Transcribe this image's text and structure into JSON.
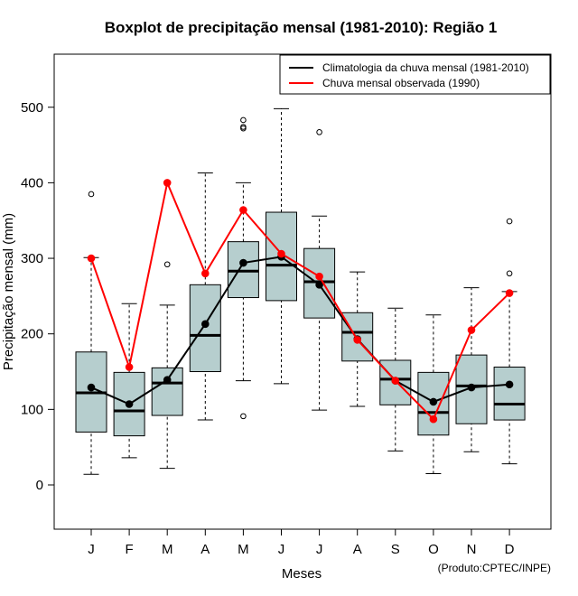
{
  "chart_data": {
    "type": "boxplot",
    "title": "Boxplot de precipitação mensal (1981-2010): Região 1",
    "xlabel": "Meses",
    "ylabel": "Precipitação mensal (mm)",
    "ylim": [
      -60,
      560
    ],
    "yticks": [
      0,
      100,
      200,
      300,
      400,
      500
    ],
    "categories": [
      "J",
      "F",
      "M",
      "A",
      "M",
      "J",
      "J",
      "A",
      "S",
      "O",
      "N",
      "D"
    ],
    "boxes": [
      {
        "min": 14,
        "q1": 70,
        "median": 122,
        "q3": 176,
        "max": 301,
        "outliers": [
          385
        ]
      },
      {
        "min": 36,
        "q1": 65,
        "median": 98,
        "q3": 149,
        "max": 240,
        "outliers": []
      },
      {
        "min": 22,
        "q1": 92,
        "median": 135,
        "q3": 155,
        "max": 238,
        "outliers": [
          292
        ]
      },
      {
        "min": 86,
        "q1": 150,
        "median": 198,
        "q3": 265,
        "max": 413,
        "outliers": []
      },
      {
        "min": 138,
        "q1": 248,
        "median": 283,
        "q3": 322,
        "max": 400,
        "outliers": [
          91,
          472,
          474,
          483
        ]
      },
      {
        "min": 134,
        "q1": 244,
        "median": 291,
        "q3": 361,
        "max": 498,
        "outliers": []
      },
      {
        "min": 99,
        "q1": 221,
        "median": 269,
        "q3": 313,
        "max": 356,
        "outliers": [
          467
        ]
      },
      {
        "min": 104,
        "q1": 164,
        "median": 202,
        "q3": 228,
        "max": 282,
        "outliers": []
      },
      {
        "min": 45,
        "q1": 106,
        "median": 140,
        "q3": 165,
        "max": 234,
        "outliers": []
      },
      {
        "min": 15,
        "q1": 66,
        "median": 96,
        "q3": 149,
        "max": 225,
        "outliers": []
      },
      {
        "min": 44,
        "q1": 81,
        "median": 131,
        "q3": 172,
        "max": 261,
        "outliers": []
      },
      {
        "min": 28,
        "q1": 86,
        "median": 107,
        "q3": 156,
        "max": 256,
        "outliers": [
          280,
          349
        ]
      }
    ],
    "series": [
      {
        "name": "Climatologia da chuva mensal (1981-2010)",
        "color": "#000000",
        "values": [
          129,
          107,
          139,
          213,
          294,
          302,
          265,
          193,
          138,
          110,
          129,
          133
        ]
      },
      {
        "name": "Chuva mensal observada (1990)",
        "color": "#ff0000",
        "values": [
          300,
          156,
          400,
          280,
          364,
          306,
          276,
          192,
          138,
          87,
          205,
          254
        ]
      }
    ],
    "box_fill": "#b6cece",
    "legend_position": "top-right",
    "credit": "(Produto:CPTEC/INPE)"
  }
}
